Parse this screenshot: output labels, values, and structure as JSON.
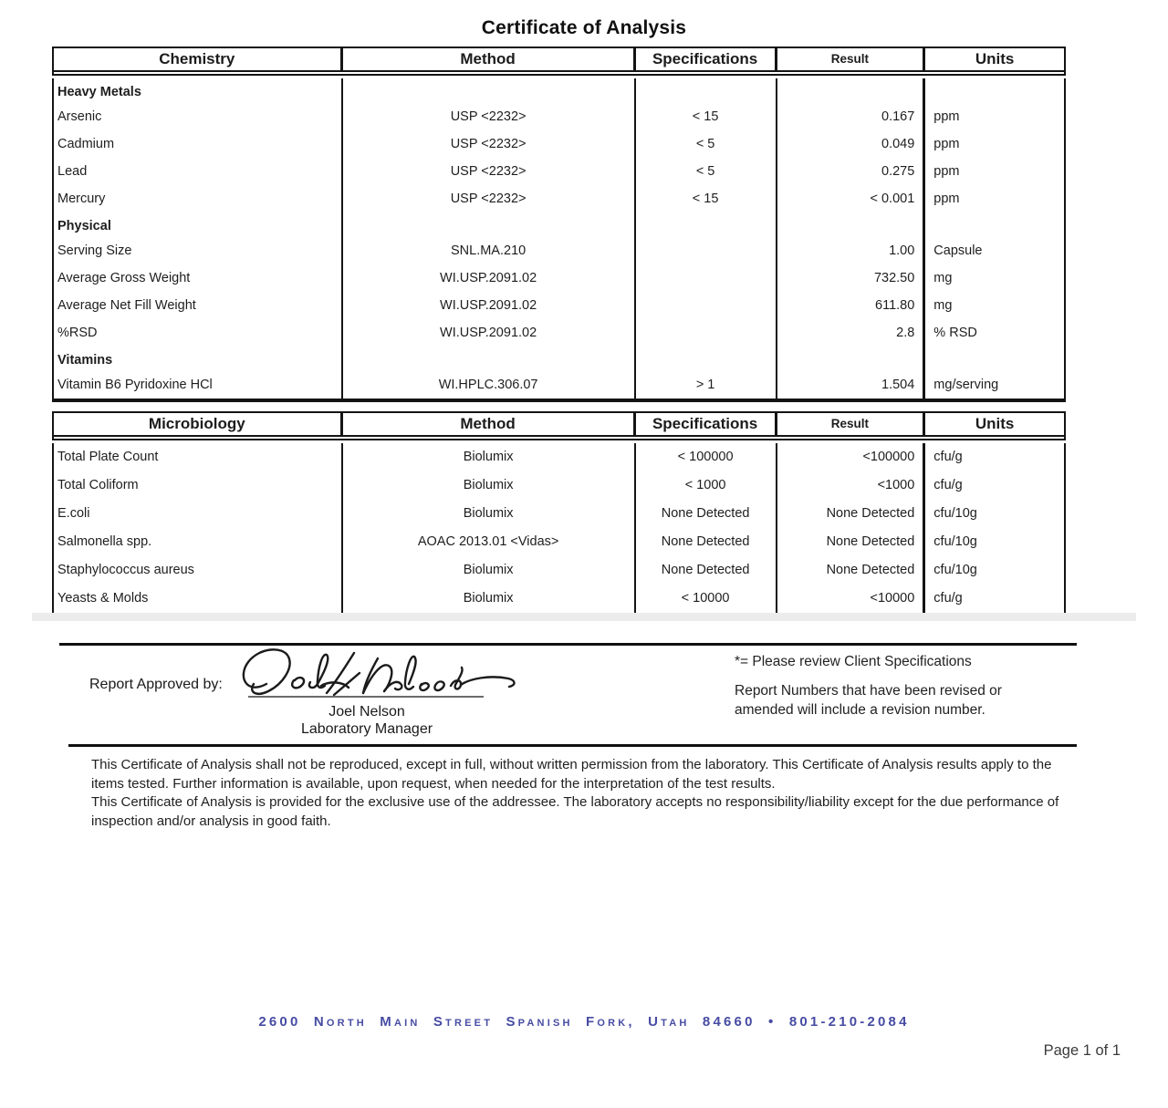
{
  "title": "Certificate of Analysis",
  "tables": [
    {
      "name": "chemistry",
      "headers": [
        "Chemistry",
        "Method",
        "Specifications",
        "Result",
        "Units"
      ],
      "rows": [
        {
          "type": "section",
          "label": "Heavy Metals"
        },
        {
          "type": "data",
          "label": "Arsenic",
          "method": "USP <2232>",
          "spec": "< 15",
          "result": "0.167",
          "units": "ppm"
        },
        {
          "type": "data",
          "label": "Cadmium",
          "method": "USP <2232>",
          "spec": "< 5",
          "result": "0.049",
          "units": "ppm"
        },
        {
          "type": "data",
          "label": "Lead",
          "method": "USP <2232>",
          "spec": "< 5",
          "result": "0.275",
          "units": "ppm"
        },
        {
          "type": "data",
          "label": "Mercury",
          "method": "USP <2232>",
          "spec": "< 15",
          "result": "< 0.001",
          "units": "ppm"
        },
        {
          "type": "section",
          "label": "Physical"
        },
        {
          "type": "data",
          "label": "Serving Size",
          "method": "SNL.MA.210",
          "spec": "",
          "result": "1.00",
          "units": "Capsule"
        },
        {
          "type": "data",
          "label": "Average Gross Weight",
          "method": "WI.USP.2091.02",
          "spec": "",
          "result": "732.50",
          "units": "mg"
        },
        {
          "type": "data",
          "label": "Average Net Fill Weight",
          "method": "WI.USP.2091.02",
          "spec": "",
          "result": "611.80",
          "units": "mg"
        },
        {
          "type": "data",
          "label": "%RSD",
          "method": "WI.USP.2091.02",
          "spec": "",
          "result": "2.8",
          "units": "% RSD"
        },
        {
          "type": "section",
          "label": "Vitamins"
        },
        {
          "type": "data",
          "label": "Vitamin B6 Pyridoxine HCl",
          "method": "WI.HPLC.306.07",
          "spec": "> 1",
          "result": "1.504",
          "units": "mg/serving"
        }
      ]
    },
    {
      "name": "microbiology",
      "headers": [
        "Microbiology",
        "Method",
        "Specifications",
        "Result",
        "Units"
      ],
      "rows": [
        {
          "type": "data",
          "label": "Total Plate Count",
          "method": "Biolumix",
          "spec": "< 100000",
          "result": "<100000",
          "units": "cfu/g"
        },
        {
          "type": "data",
          "label": "Total Coliform",
          "method": "Biolumix",
          "spec": "< 1000",
          "result": "<1000",
          "units": "cfu/g"
        },
        {
          "type": "data",
          "label": "E.coli",
          "method": "Biolumix",
          "spec": "None Detected",
          "result": "None Detected",
          "units": "cfu/10g"
        },
        {
          "type": "data",
          "label": "Salmonella spp.",
          "method": "AOAC 2013.01 <Vidas>",
          "spec": "None Detected",
          "result": "None Detected",
          "units": "cfu/10g"
        },
        {
          "type": "data",
          "label": "Staphylococcus aureus",
          "method": "Biolumix",
          "spec": "None Detected",
          "result": "None Detected",
          "units": "cfu/10g"
        },
        {
          "type": "data",
          "label": "Yeasts & Molds",
          "method": "Biolumix",
          "spec": "< 10000",
          "result": "<10000",
          "units": "cfu/g"
        }
      ]
    }
  ],
  "approval": {
    "label": "Report Approved by:",
    "signee": "Joel Nelson",
    "signee_title": "Laboratory Manager"
  },
  "notes": {
    "asterisk": "*= Please review Client Specifications",
    "revision": "Report Numbers that have been revised or amended will include a revision number."
  },
  "disclaimer": {
    "p1": "This Certificate of Analysis shall not be reproduced, except in full, without written permission from the laboratory. This Certificate of Analysis results apply to the items tested. Further information is available, upon request, when needed for the interpretation of the test results.",
    "p2": "This Certificate of Analysis is provided for the exclusive use of the addressee. The laboratory accepts no responsibility/liability except for the due performance of inspection and/or analysis in good faith."
  },
  "footer": {
    "address": "2600 North Main Street  Spanish Fork, Utah  84660 • 801-210-2084",
    "address_color": "#474ca3",
    "page": "Page 1 of 1"
  }
}
